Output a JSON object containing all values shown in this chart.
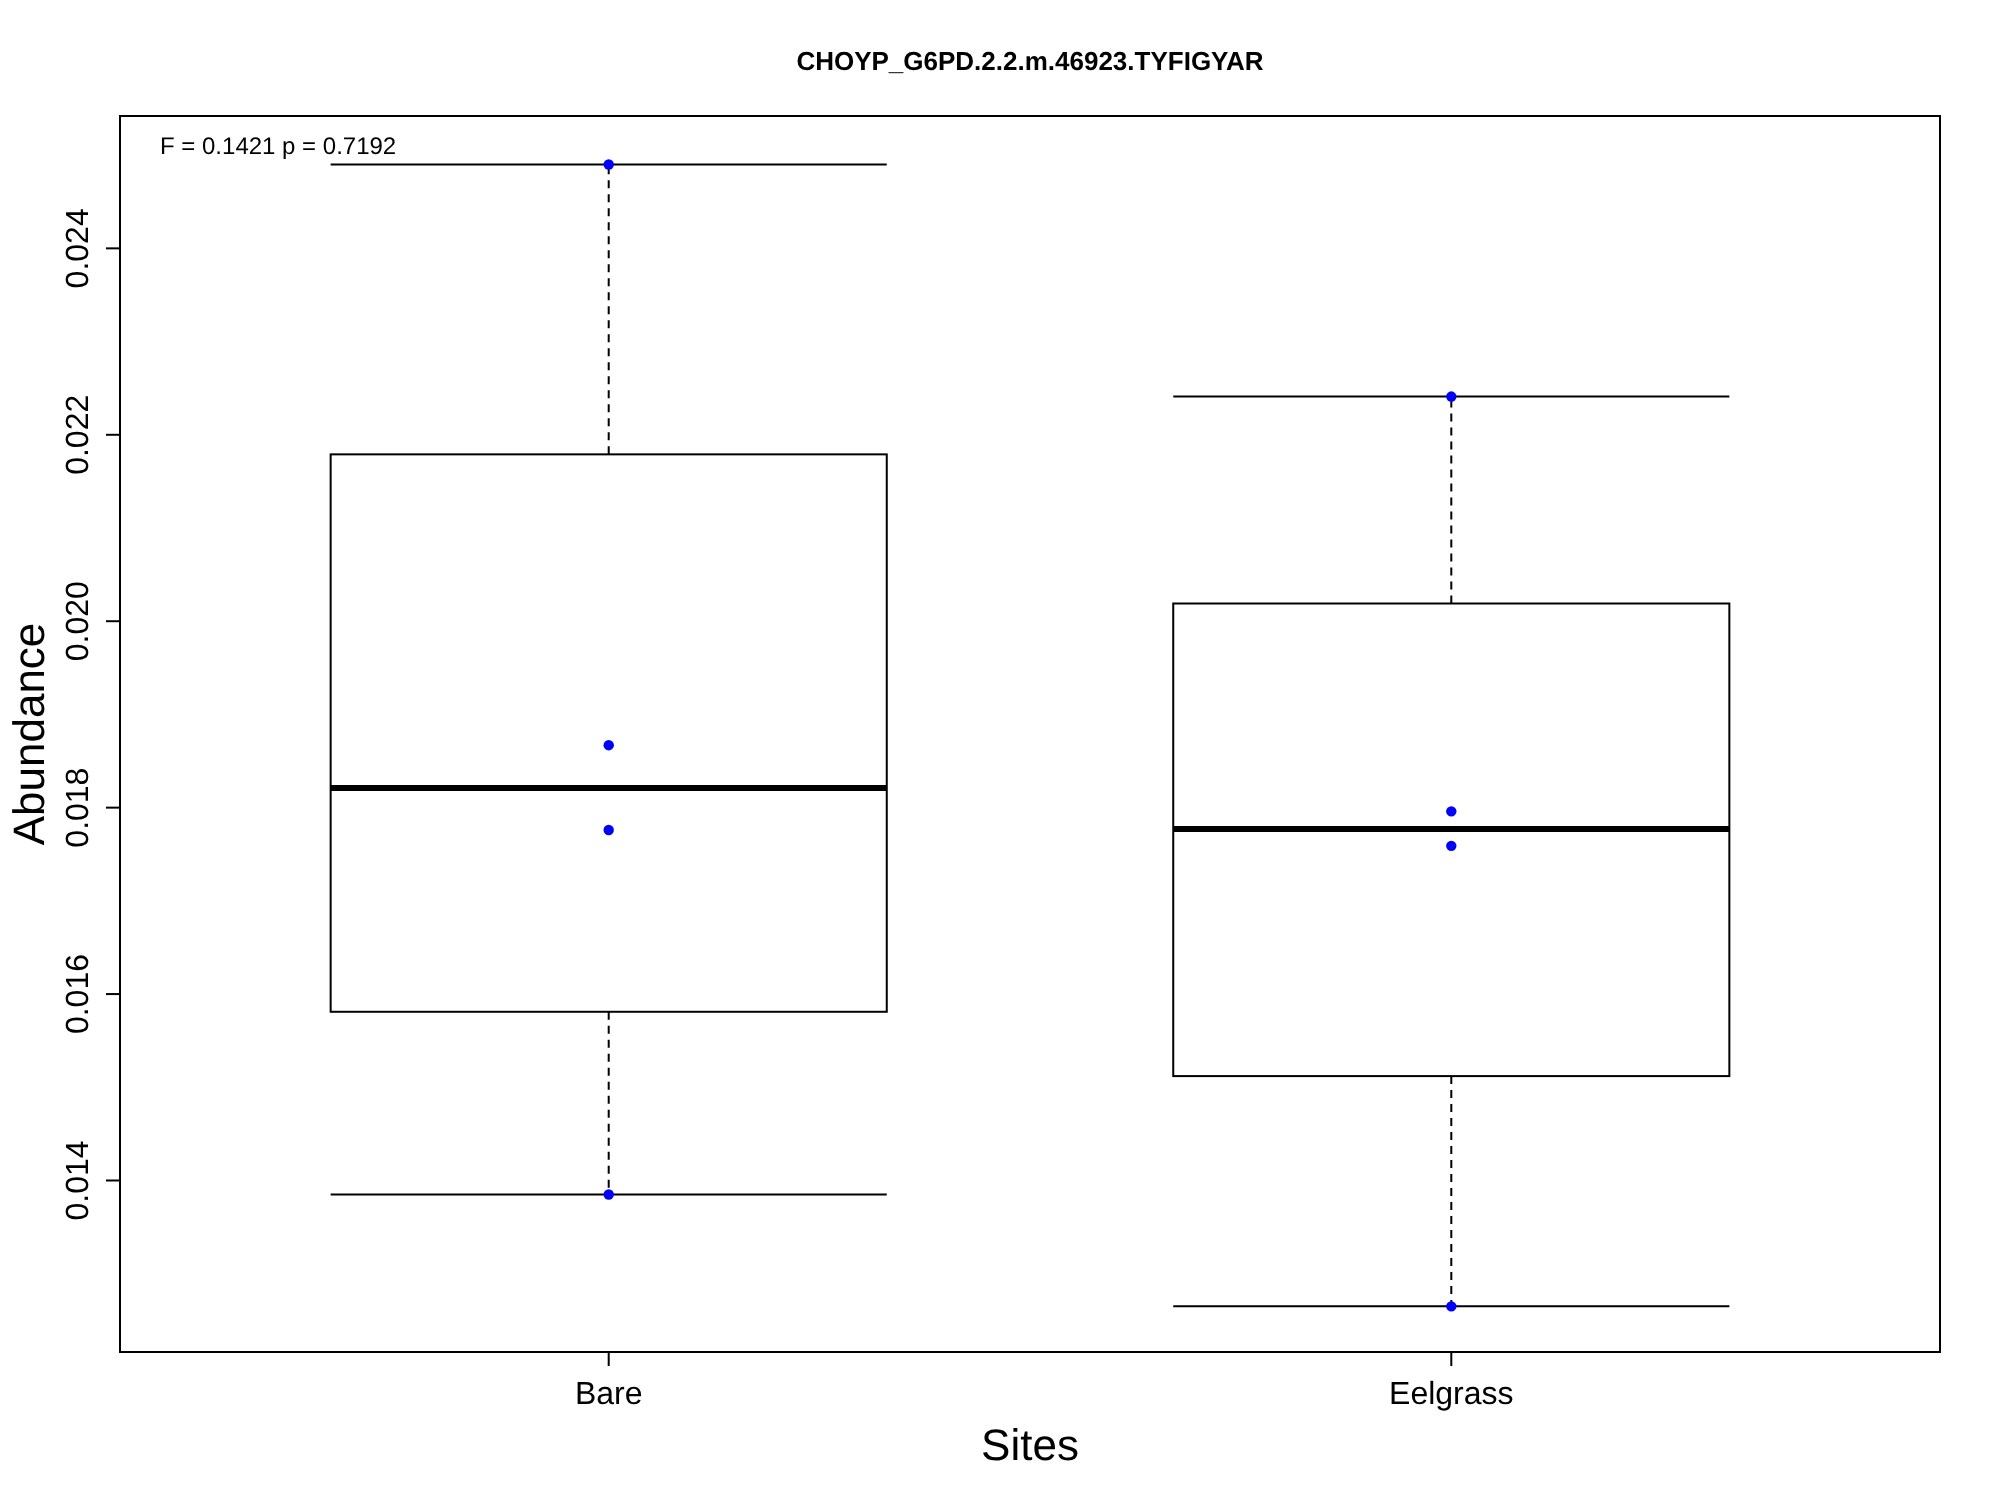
{
  "chart_data": {
    "type": "box",
    "title": "CHOYP_G6PD.2.2.m.46923.TYFIGYAR",
    "xlabel": "Sites",
    "ylabel": "Abundance",
    "categories": [
      "Bare",
      "Eelgrass"
    ],
    "boxes": [
      {
        "low": 0.01385,
        "q1": 0.01581,
        "median": 0.01821,
        "q3": 0.02179,
        "high": 0.0249
      },
      {
        "low": 0.01265,
        "q1": 0.01512,
        "median": 0.01777,
        "q3": 0.02019,
        "high": 0.02241
      }
    ],
    "series": [
      {
        "type": "scatter",
        "color": "#0000ff",
        "x": [
          "Bare",
          "Bare",
          "Bare",
          "Bare",
          "Eelgrass",
          "Eelgrass",
          "Eelgrass",
          "Eelgrass"
        ],
        "values": [
          0.0249,
          0.01867,
          0.01776,
          0.01385,
          0.02241,
          0.01796,
          0.01759,
          0.01265
        ]
      }
    ],
    "ylim": [
      0.01216,
      0.02542
    ],
    "yticks": [
      {
        "value": 0.014,
        "label": "0.014"
      },
      {
        "value": 0.016,
        "label": "0.016"
      },
      {
        "value": 0.018,
        "label": "0.018"
      },
      {
        "value": 0.02,
        "label": "0.020"
      },
      {
        "value": 0.022,
        "label": "0.022"
      },
      {
        "value": 0.024,
        "label": "0.024"
      }
    ],
    "annotations": [
      "F = 0.1421 p = 0.7192"
    ],
    "grid": false,
    "marker": "circle"
  }
}
